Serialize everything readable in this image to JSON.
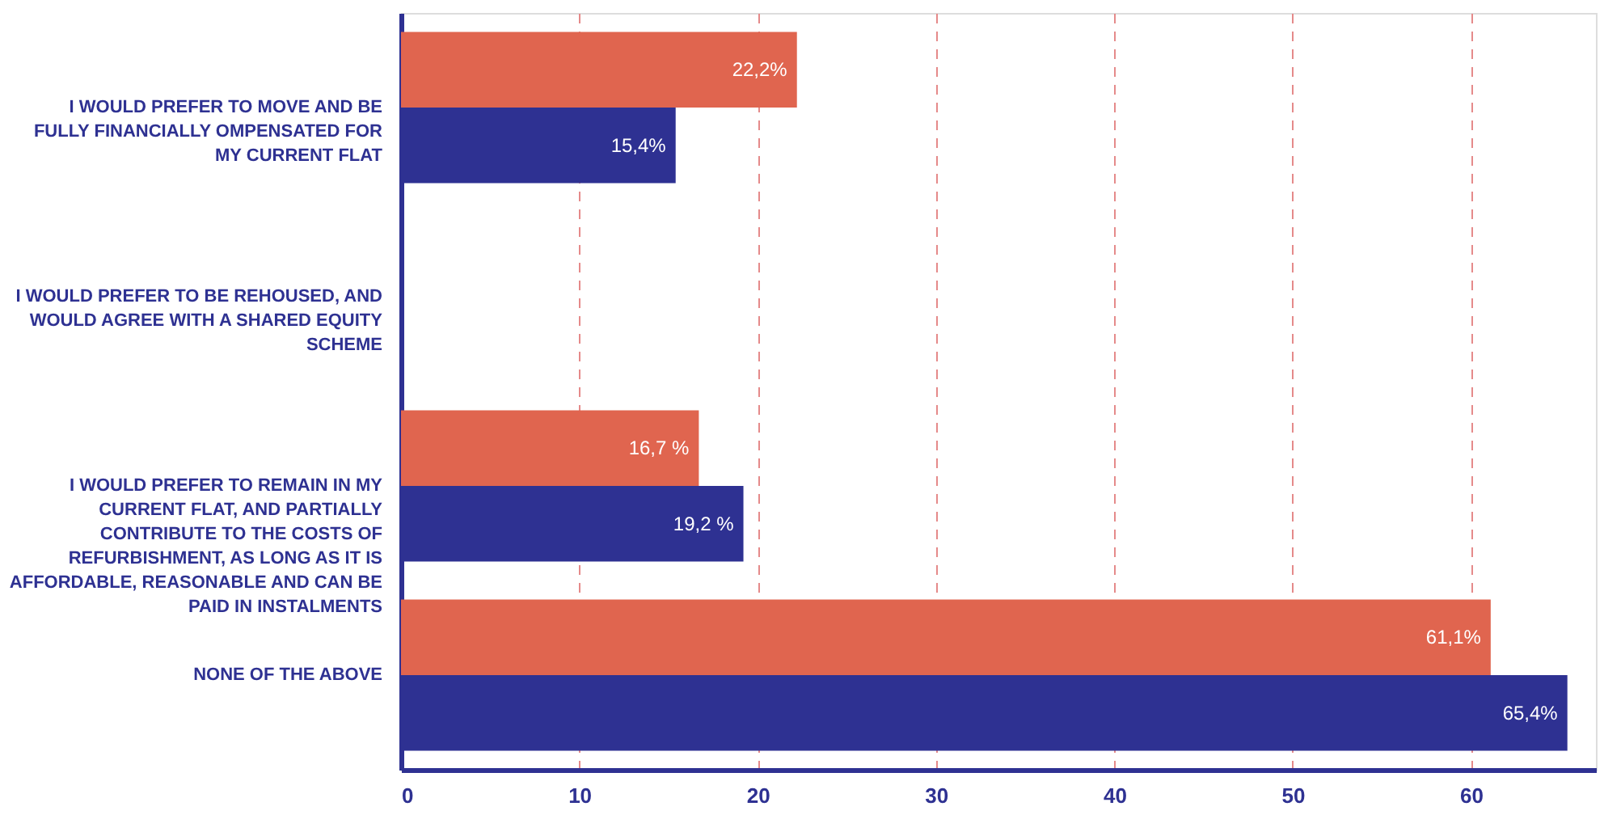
{
  "chart_data": {
    "type": "bar",
    "orientation": "horizontal",
    "categories": [
      "I WOULD PREFER TO MOVE AND BE FULLY FINANCIALLY OMPENSATED FOR MY CURRENT FLAT",
      "I WOULD PREFER TO BE REHOUSED, AND WOULD AGREE WITH A SHARED EQUITY SCHEME",
      "I WOULD PREFER TO REMAIN IN MY CURRENT FLAT, AND PARTIALLY CONTRIBUTE TO THE COSTS OF REFURBISHMENT, AS LONG AS IT IS AFFORDABLE, REASONABLE AND CAN BE PAID IN INSTALMENTS",
      "NONE OF THE ABOVE"
    ],
    "series": [
      {
        "color": "#e0654f",
        "values": [
          22.2,
          null,
          16.7,
          61.1
        ],
        "value_labels": [
          "22,2%",
          null,
          "16,7 %",
          "61,1%"
        ]
      },
      {
        "color": "#2e3192",
        "values": [
          15.4,
          null,
          19.2,
          65.4
        ],
        "value_labels": [
          "15,4%",
          null,
          "19,2 %",
          "65,4%"
        ]
      }
    ],
    "xlim": [
      0,
      67
    ],
    "xticks": [
      0,
      10,
      20,
      30,
      40,
      50,
      60
    ],
    "grid": "x"
  }
}
